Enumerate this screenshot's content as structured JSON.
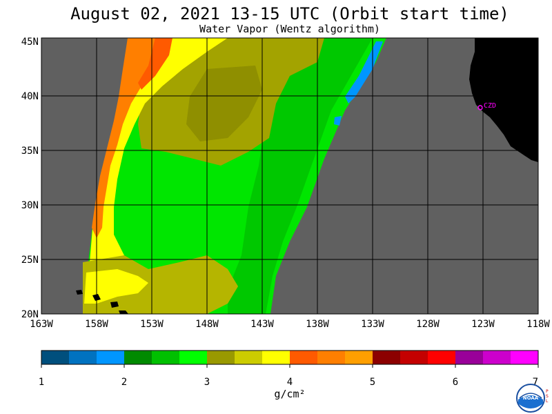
{
  "header": {
    "title": "August 02, 2021  13-15 UTC  (Orbit start time)",
    "subtitle": "Water Vapor (Wentz algorithm)"
  },
  "map": {
    "longitude_labels": [
      "163W",
      "158W",
      "153W",
      "148W",
      "143W",
      "138W",
      "133W",
      "128W",
      "123W",
      "118W"
    ],
    "latitude_labels": [
      "45N",
      "40N",
      "35N",
      "30N",
      "25N",
      "20N"
    ],
    "station_label": "CZD",
    "colors": {
      "no_data": "#606060",
      "land": "#000000",
      "station": "#ff00ff",
      "grid": "#000000"
    }
  },
  "colorbar": {
    "tick_labels": [
      "1",
      "2",
      "3",
      "4",
      "5",
      "6",
      "7"
    ],
    "units": "g/cm²",
    "colors": [
      "#004f7d",
      "#0072c0",
      "#0096ff",
      "#008a00",
      "#00c000",
      "#00ff00",
      "#999900",
      "#cccc00",
      "#ffff00",
      "#ff5a00",
      "#ff7f00",
      "#ff9f00",
      "#8c0000",
      "#c40000",
      "#ff0000",
      "#990099",
      "#cc00cc",
      "#ff00ff"
    ]
  },
  "logo": {
    "name": "noaa-logo",
    "text": "NOAA",
    "side_text": "PSL"
  }
}
